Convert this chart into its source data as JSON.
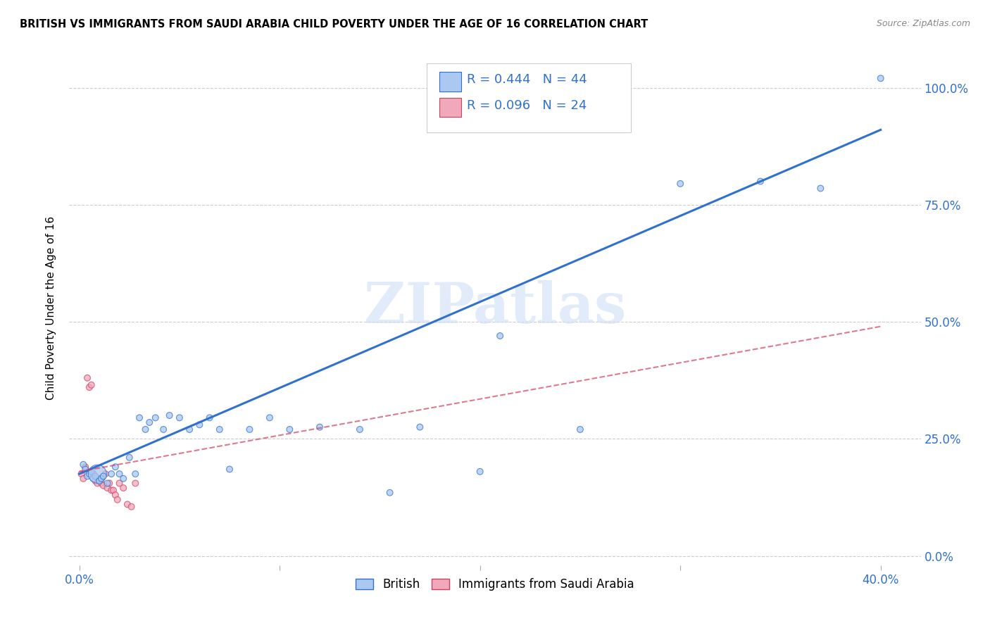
{
  "title": "BRITISH VS IMMIGRANTS FROM SAUDI ARABIA CHILD POVERTY UNDER THE AGE OF 16 CORRELATION CHART",
  "source": "Source: ZipAtlas.com",
  "ylabel": "Child Poverty Under the Age of 16",
  "xlim": [
    -0.005,
    0.42
  ],
  "ylim": [
    -0.02,
    1.08
  ],
  "xticks": [
    0.0,
    0.1,
    0.2,
    0.3,
    0.4
  ],
  "xtick_labels": [
    "0.0%",
    "",
    "",
    "",
    "40.0%"
  ],
  "ytick_labels": [
    "0.0%",
    "25.0%",
    "50.0%",
    "75.0%",
    "100.0%"
  ],
  "yticks": [
    0.0,
    0.25,
    0.5,
    0.75,
    1.0
  ],
  "r_british": 0.444,
  "n_british": 44,
  "r_saudi": 0.096,
  "n_saudi": 24,
  "british_color": "#aac8f0",
  "saudi_color": "#f0a8bb",
  "british_line_color": "#3070d0",
  "saudi_line_color": "#d04060",
  "legend_british": "British",
  "legend_saudi": "Immigrants from Saudi Arabia",
  "watermark": "ZIPatlas",
  "british_x": [
    0.002,
    0.003,
    0.004,
    0.005,
    0.006,
    0.007,
    0.008,
    0.009,
    0.01,
    0.011,
    0.012,
    0.014,
    0.016,
    0.018,
    0.02,
    0.022,
    0.025,
    0.028,
    0.03,
    0.033,
    0.035,
    0.038,
    0.042,
    0.045,
    0.05,
    0.055,
    0.06,
    0.065,
    0.07,
    0.075,
    0.085,
    0.095,
    0.105,
    0.12,
    0.14,
    0.155,
    0.17,
    0.2,
    0.21,
    0.25,
    0.3,
    0.34,
    0.37,
    0.4
  ],
  "british_y": [
    0.195,
    0.185,
    0.17,
    0.175,
    0.18,
    0.165,
    0.17,
    0.175,
    0.16,
    0.165,
    0.17,
    0.155,
    0.175,
    0.19,
    0.175,
    0.165,
    0.21,
    0.175,
    0.295,
    0.27,
    0.285,
    0.295,
    0.27,
    0.3,
    0.295,
    0.27,
    0.28,
    0.295,
    0.27,
    0.185,
    0.27,
    0.295,
    0.27,
    0.275,
    0.27,
    0.135,
    0.275,
    0.18,
    0.47,
    0.27,
    0.795,
    0.8,
    0.785,
    1.02
  ],
  "british_s": [
    40,
    40,
    40,
    40,
    40,
    40,
    40,
    350,
    40,
    40,
    40,
    40,
    40,
    40,
    40,
    40,
    40,
    40,
    40,
    40,
    40,
    40,
    40,
    40,
    40,
    40,
    40,
    40,
    40,
    40,
    40,
    40,
    40,
    40,
    40,
    40,
    40,
    40,
    40,
    40,
    40,
    40,
    40,
    40
  ],
  "saudi_x": [
    0.001,
    0.002,
    0.003,
    0.004,
    0.005,
    0.006,
    0.007,
    0.008,
    0.009,
    0.01,
    0.011,
    0.012,
    0.013,
    0.014,
    0.015,
    0.016,
    0.017,
    0.018,
    0.019,
    0.02,
    0.022,
    0.024,
    0.026,
    0.028
  ],
  "saudi_y": [
    0.175,
    0.165,
    0.19,
    0.38,
    0.36,
    0.365,
    0.175,
    0.16,
    0.155,
    0.165,
    0.155,
    0.15,
    0.175,
    0.145,
    0.155,
    0.14,
    0.14,
    0.13,
    0.12,
    0.155,
    0.145,
    0.11,
    0.105,
    0.155
  ],
  "saudi_s": [
    40,
    40,
    40,
    40,
    40,
    40,
    40,
    40,
    40,
    40,
    40,
    40,
    40,
    40,
    40,
    40,
    40,
    40,
    40,
    40,
    40,
    40,
    40,
    40
  ],
  "blue_line_x0": 0.0,
  "blue_line_y0": 0.175,
  "blue_line_x1": 0.4,
  "blue_line_y1": 0.91,
  "pink_line_x0": 0.0,
  "pink_line_y0": 0.18,
  "pink_line_x1": 0.4,
  "pink_line_y1": 0.49
}
